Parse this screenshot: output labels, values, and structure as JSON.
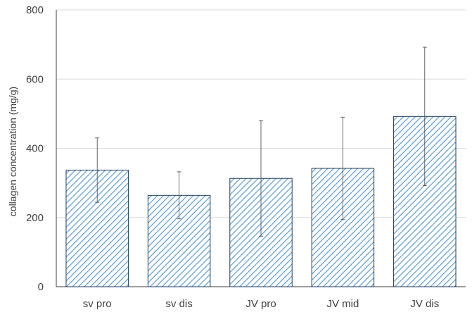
{
  "chart_data": {
    "type": "bar",
    "title": "",
    "xlabel": "",
    "ylabel": "collagen concentration (mg/g)",
    "categories": [
      "sv pro",
      "sv dis",
      "JV pro",
      "JV mid",
      "JV dis"
    ],
    "values": [
      337,
      264,
      313,
      342,
      492
    ],
    "error": [
      93,
      68,
      167,
      148,
      200
    ],
    "ylim": [
      0,
      800
    ],
    "yticks": [
      0,
      200,
      400,
      600,
      800
    ],
    "ytick_labels": [
      "0",
      "200",
      "400",
      "600",
      "800"
    ],
    "grid": true,
    "legend": "none",
    "bar_fill": "diagonal-hatch",
    "colors": {
      "bar_stroke": "#1f3b60",
      "hatch": "#5b9bd5",
      "gridline": "#d9d9d9",
      "axis": "#404040",
      "error_bar": "#404040",
      "text": "#404040"
    }
  }
}
